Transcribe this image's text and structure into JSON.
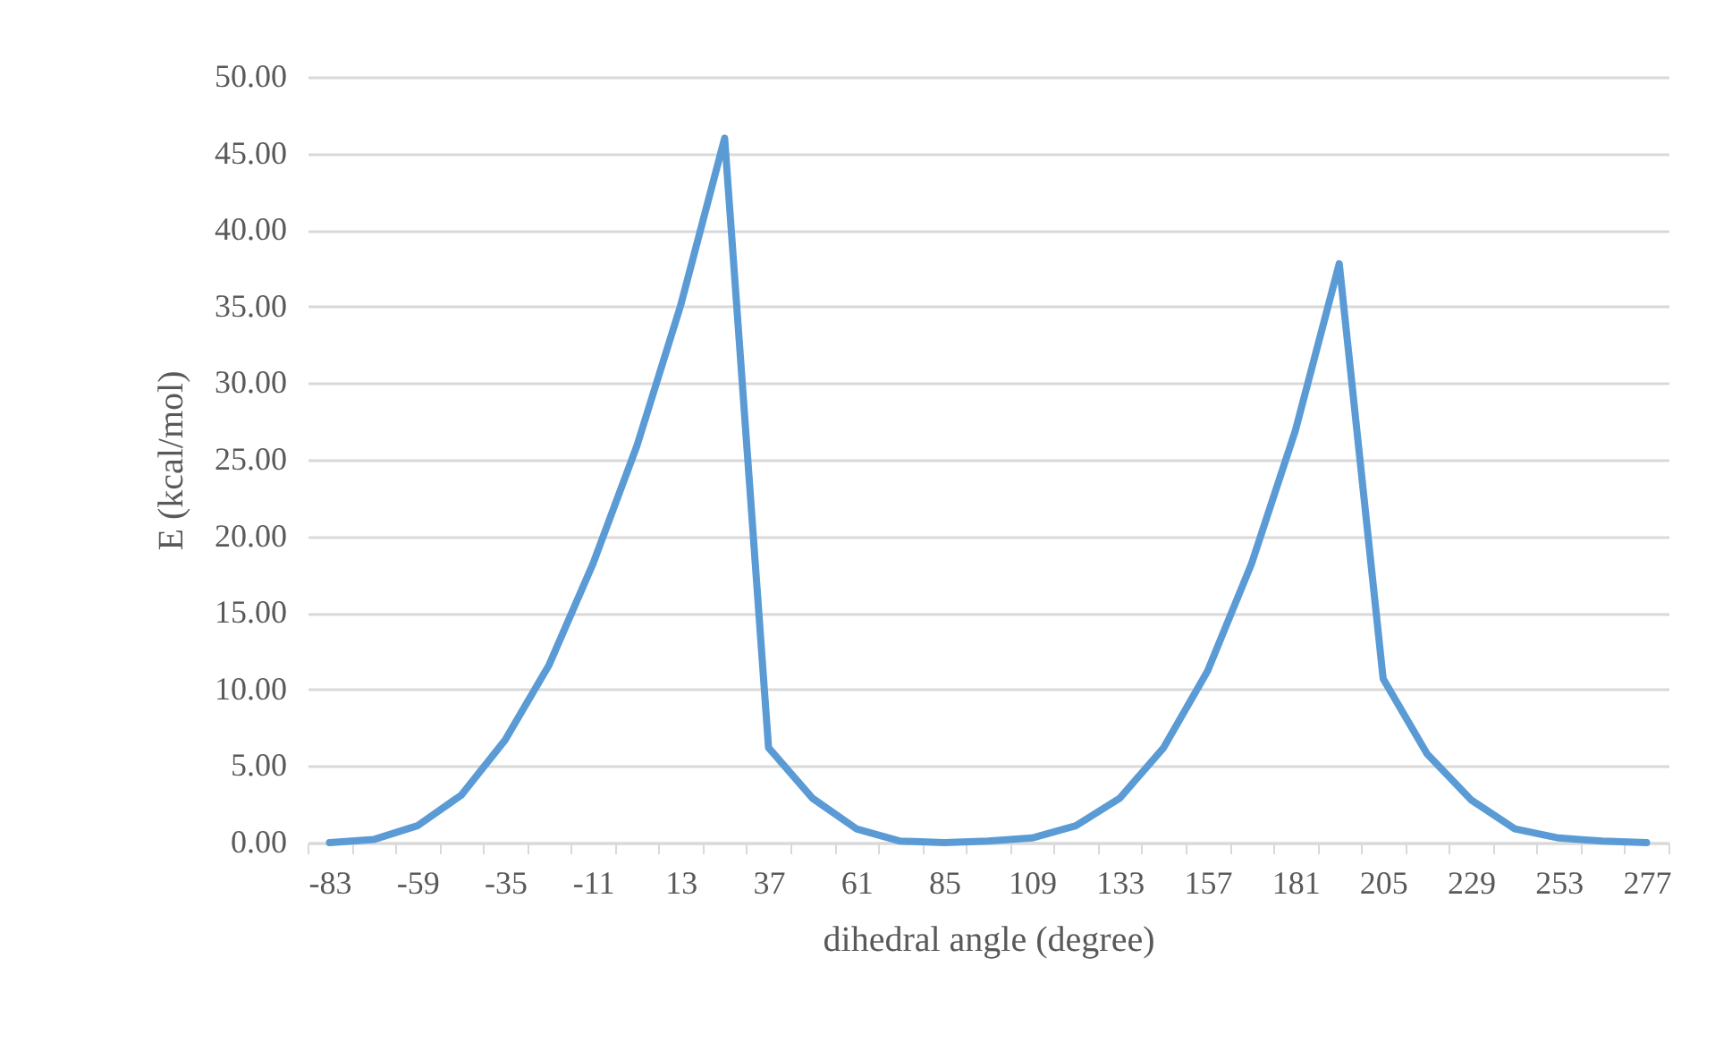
{
  "chart_data": {
    "type": "line",
    "xlabel": "dihedral angle (degree)",
    "ylabel": "E (kcal/mol)",
    "categories": [
      "-83",
      null,
      "-59",
      null,
      "-35",
      null,
      "-11",
      null,
      "13",
      null,
      "37",
      null,
      "61",
      null,
      "85",
      null,
      "109",
      null,
      "133",
      null,
      "157",
      null,
      "181",
      null,
      "205",
      null,
      "229",
      null,
      "253",
      null,
      "277"
    ],
    "series": [
      {
        "color": "#5b9bd5",
        "values": [
          0,
          0.2,
          1.1,
          3.1,
          6.7,
          11.6,
          18.2,
          25.9,
          35.1,
          46.0,
          6.2,
          2.9,
          0.9,
          0.1,
          0,
          0.1,
          0.3,
          1.1,
          2.9,
          6.2,
          11.2,
          18.2,
          26.9,
          37.8,
          10.7,
          5.8,
          2.8,
          0.9,
          0.3,
          0.1,
          0
        ]
      }
    ],
    "ylim": [
      0,
      50
    ],
    "yticks": [
      {
        "value": 0,
        "label": "0.00"
      },
      {
        "value": 5,
        "label": "5.00"
      },
      {
        "value": 10,
        "label": "10.00"
      },
      {
        "value": 15,
        "label": "15.00"
      },
      {
        "value": 20,
        "label": "20.00"
      },
      {
        "value": 25,
        "label": "25.00"
      },
      {
        "value": 30,
        "label": "30.00"
      },
      {
        "value": 35,
        "label": "35.00"
      },
      {
        "value": 40,
        "label": "40.00"
      },
      {
        "value": 45,
        "label": "45.00"
      },
      {
        "value": 50,
        "label": "50.00"
      }
    ],
    "grid": "y",
    "marker": "none",
    "line_style": "solid"
  }
}
